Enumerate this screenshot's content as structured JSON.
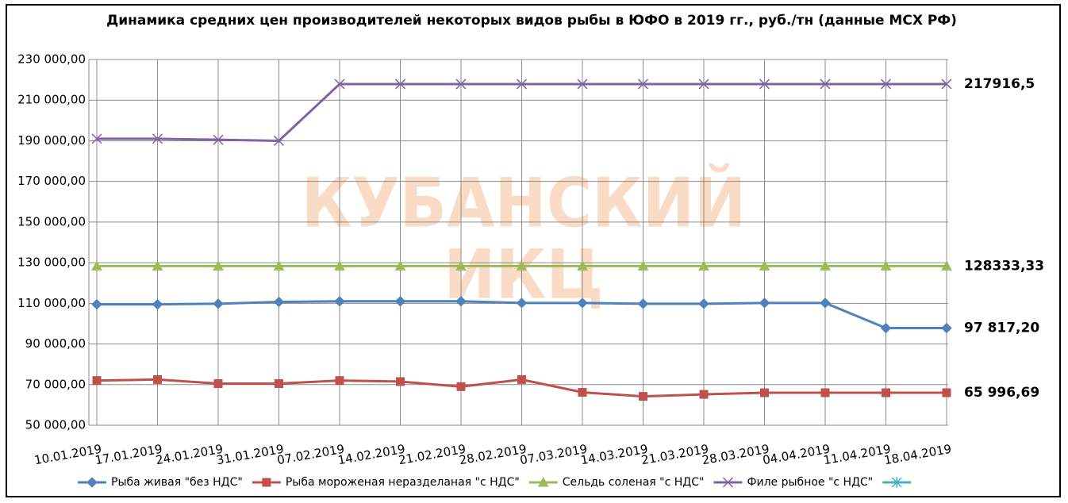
{
  "chart_data": {
    "type": "line",
    "title": "Динамика средних цен производителей некоторых видов рыбы в ЮФО в 2019 гг., руб./тн (данные МСХ РФ)",
    "watermark": [
      "КУБАНСКИЙ",
      "ИКЦ"
    ],
    "categories": [
      "10.01.2019",
      "17.01.2019",
      "24.01.2019",
      "31.01.2019",
      "07.02.2019",
      "14.02.2019",
      "21.02.2019",
      "28.02.2019",
      "07.03.2019",
      "14.03.2019",
      "21.03.2019",
      "28.03.2019",
      "04.04.2019",
      "11.04.2019",
      "18.04.2019"
    ],
    "ylim": [
      50000,
      230000
    ],
    "yticks": [
      {
        "value": 50000,
        "label": "50 000,00"
      },
      {
        "value": 70000,
        "label": "70 000,00"
      },
      {
        "value": 90000,
        "label": "90 000,00"
      },
      {
        "value": 110000,
        "label": "110 000,00"
      },
      {
        "value": 130000,
        "label": "130 000,00"
      },
      {
        "value": 150000,
        "label": "150 000,00"
      },
      {
        "value": 170000,
        "label": "170 000,00"
      },
      {
        "value": 190000,
        "label": "190 000,00"
      },
      {
        "value": 210000,
        "label": "210 000,00"
      },
      {
        "value": 230000,
        "label": "230 000,00"
      }
    ],
    "grid": true,
    "series": [
      {
        "name": "Рыба живая \"без НДС\"",
        "color": "#4f81bd",
        "marker": "diamond",
        "values": [
          109500,
          109500,
          109800,
          110700,
          111000,
          111000,
          111000,
          110200,
          110200,
          109800,
          109800,
          110200,
          110200,
          97817.2,
          97817.2
        ],
        "value_labels": [
          null,
          null,
          null,
          null,
          null,
          null,
          null,
          null,
          null,
          null,
          null,
          null,
          null,
          null,
          "97 817,20"
        ]
      },
      {
        "name": "Рыба мороженая неразделаная \"с НДС\"",
        "color": "#c0504d",
        "marker": "square",
        "values": [
          72000,
          72500,
          70500,
          70500,
          72000,
          71500,
          69000,
          72500,
          66200,
          64200,
          65200,
          66000,
          66000,
          66000,
          65996.69
        ],
        "value_labels": [
          null,
          null,
          null,
          null,
          null,
          null,
          null,
          null,
          null,
          null,
          null,
          null,
          null,
          null,
          "65 996,69"
        ]
      },
      {
        "name": "Сельдь соленая \"с НДС\"",
        "color": "#9bbb59",
        "marker": "triangle",
        "values": [
          128333.33,
          128333.33,
          128333.33,
          128333.33,
          128333.33,
          128333.33,
          128333.33,
          128333.33,
          128333.33,
          128333.33,
          128333.33,
          128333.33,
          128333.33,
          128333.33,
          128333.33
        ],
        "value_labels": [
          null,
          null,
          null,
          null,
          null,
          null,
          null,
          null,
          null,
          null,
          null,
          null,
          null,
          null,
          "128333,33"
        ]
      },
      {
        "name": "Филе рыбное \"с НДС\"",
        "color": "#8064a2",
        "marker": "x",
        "values": [
          191000,
          191000,
          190500,
          190000,
          217916.5,
          217916.5,
          217916.5,
          217916.5,
          217916.5,
          217916.5,
          217916.5,
          217916.5,
          217916.5,
          217916.5,
          217916.5
        ],
        "value_labels": [
          null,
          null,
          null,
          null,
          null,
          null,
          null,
          null,
          null,
          null,
          null,
          null,
          null,
          null,
          "217916,5"
        ]
      },
      {
        "name": null,
        "color": "#4bacc6",
        "marker": "star",
        "values": [
          null,
          null,
          null,
          null,
          null,
          null,
          null,
          null,
          null,
          null,
          null,
          null,
          null,
          null,
          null
        ]
      }
    ]
  }
}
